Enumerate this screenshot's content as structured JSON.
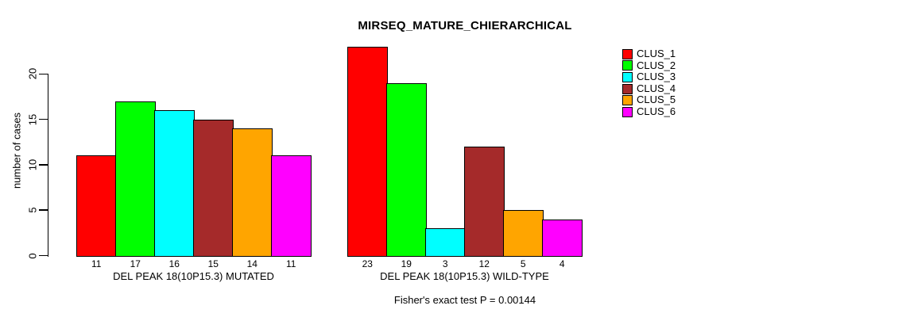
{
  "background_color": "#ffffff",
  "chart_data": {
    "type": "bar",
    "title": "MIRSEQ_MATURE_CHIERARCHICAL",
    "ylabel": "number of cases",
    "ylim": [
      0,
      20
    ],
    "yticks": [
      0,
      5,
      10,
      15,
      20
    ],
    "grid": false,
    "legend_position": "right",
    "legend": [
      {
        "label": "CLUS_1",
        "color": "#FF0000"
      },
      {
        "label": "CLUS_2",
        "color": "#00FF00"
      },
      {
        "label": "CLUS_3",
        "color": "#00FFFF"
      },
      {
        "label": "CLUS_4",
        "color": "#A52A2A"
      },
      {
        "label": "CLUS_5",
        "color": "#FFA500"
      },
      {
        "label": "CLUS_6",
        "color": "#FF00FF"
      }
    ],
    "groups": [
      {
        "label": "DEL PEAK 18(10P15.3) MUTATED",
        "values": [
          11,
          17,
          16,
          15,
          14,
          11
        ]
      },
      {
        "label": "DEL PEAK 18(10P15.3) WILD-TYPE",
        "values": [
          23,
          19,
          3,
          12,
          5,
          4
        ]
      }
    ],
    "annotation": "Fisher's exact test P = 0.00144",
    "bar_border_color": "#000000",
    "axis_color": "#000000"
  }
}
